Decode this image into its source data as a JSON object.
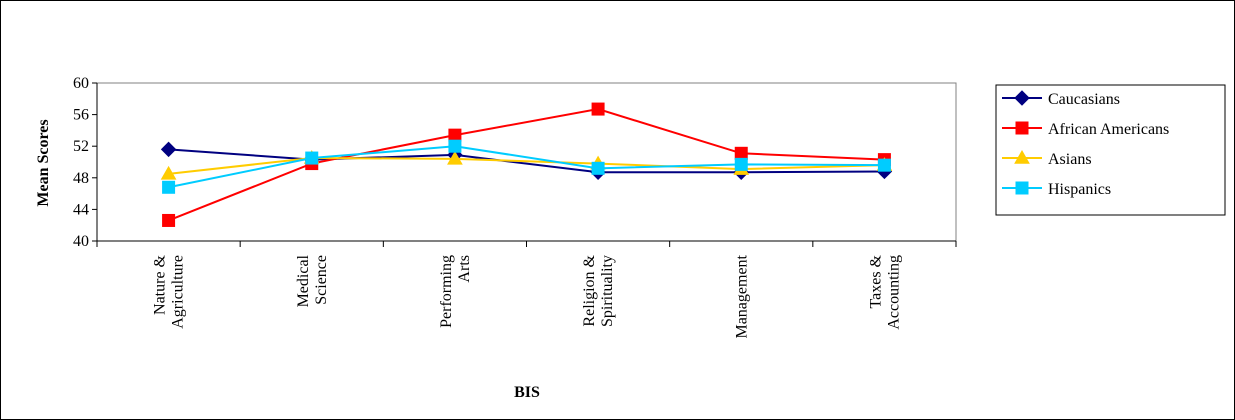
{
  "chart_data": {
    "type": "line",
    "title": "",
    "xlabel": "BIS",
    "ylabel": "Mean Scores",
    "ylim": [
      40,
      60
    ],
    "yticks": [
      40,
      44,
      48,
      52,
      56,
      60
    ],
    "grid": false,
    "legend_position": "right",
    "categories": [
      [
        "Nature &",
        "Agriculture"
      ],
      [
        "Medical",
        "Science"
      ],
      [
        "Performing",
        "Arts"
      ],
      [
        "Religion &",
        "Spirituality"
      ],
      [
        "Management"
      ],
      [
        "Taxes &",
        "Accounting"
      ]
    ],
    "series": [
      {
        "name": "Caucasians",
        "color": "#000080",
        "marker": "diamond",
        "values": [
          51.6,
          50.3,
          50.9,
          48.7,
          48.7,
          48.8
        ]
      },
      {
        "name": "African Americans",
        "color": "#ff0000",
        "marker": "square",
        "values": [
          42.6,
          49.8,
          53.4,
          56.7,
          51.1,
          50.3
        ]
      },
      {
        "name": "Asians",
        "color": "#ffcc00",
        "marker": "triangle",
        "values": [
          48.5,
          50.5,
          50.4,
          49.8,
          49.1,
          49.6
        ]
      },
      {
        "name": "Hispanics",
        "color": "#00ccff",
        "marker": "square",
        "values": [
          46.8,
          50.5,
          52.0,
          49.2,
          49.7,
          49.6
        ]
      }
    ]
  }
}
